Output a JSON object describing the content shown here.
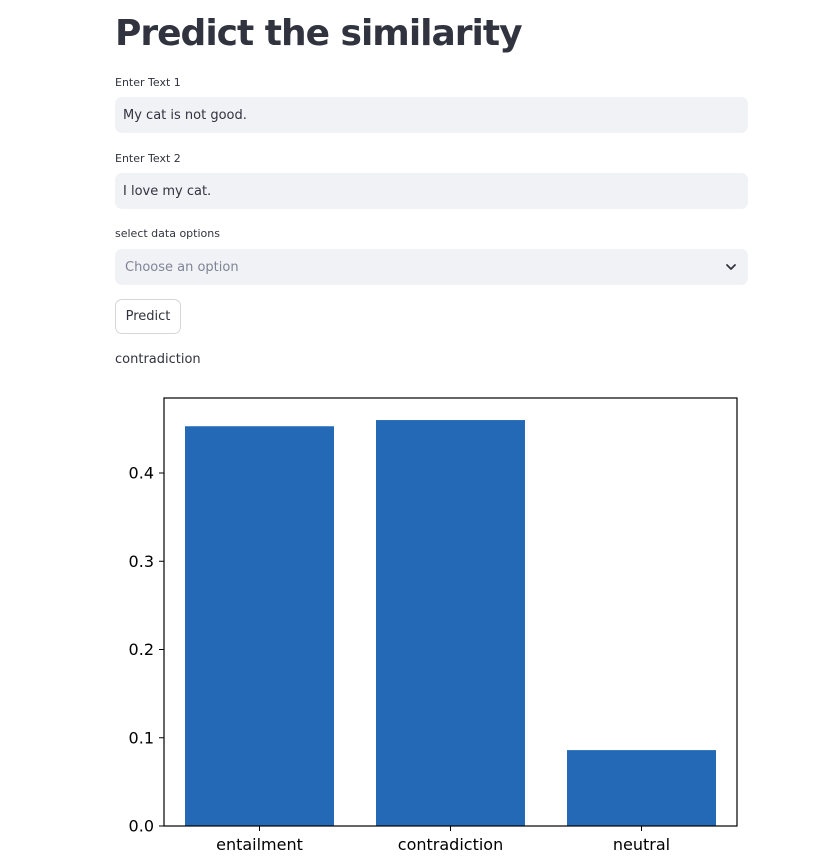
{
  "page": {
    "title": "Predict the similarity"
  },
  "inputs": {
    "text1": {
      "label": "Enter Text 1",
      "value": "My cat is not good."
    },
    "text2": {
      "label": "Enter Text 2",
      "value": "I love my cat."
    }
  },
  "select": {
    "label": "select data options",
    "placeholder": "Choose an option",
    "icon": "chevron-down-icon"
  },
  "predict_button": {
    "label": "Predict"
  },
  "result": {
    "text": "contradiction"
  },
  "colors": {
    "bar": "#2369b6",
    "input_bg": "#f0f2f6",
    "text": "#31333f"
  },
  "chart_data": {
    "type": "bar",
    "categories": [
      "entailment",
      "contradiction",
      "neutral"
    ],
    "values": [
      0.453,
      0.46,
      0.086
    ],
    "ylim": [
      0,
      0.485
    ],
    "yticks": [
      0.0,
      0.1,
      0.2,
      0.3,
      0.4
    ],
    "ytick_labels": [
      "0.0",
      "0.1",
      "0.2",
      "0.3",
      "0.4"
    ],
    "grid": false,
    "legend": "none"
  }
}
